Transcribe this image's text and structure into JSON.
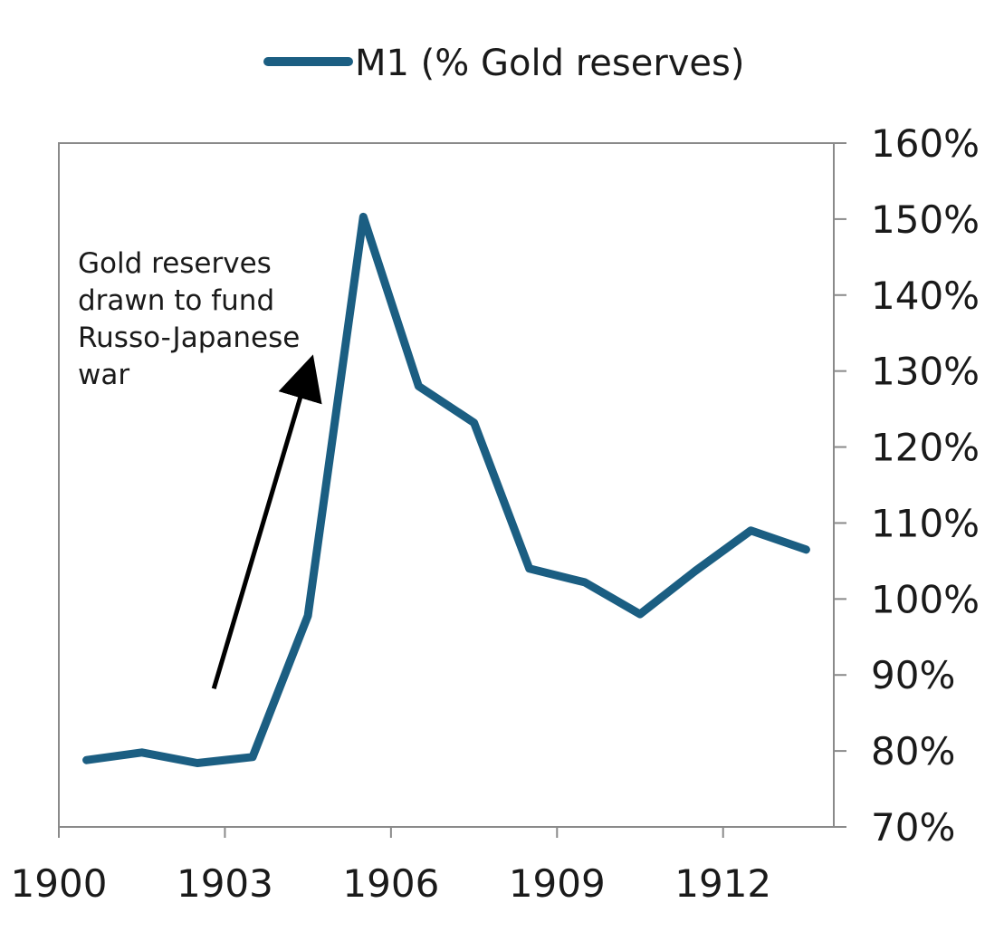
{
  "chart_data": {
    "type": "line",
    "title": "",
    "xlabel": "",
    "ylabel": "",
    "legend": {
      "position": "top-center",
      "entries": [
        "M1 (% Gold reserves)"
      ]
    },
    "x_ticks": [
      "1900",
      "1903",
      "1906",
      "1909",
      "1912"
    ],
    "y_ticks": [
      "70%",
      "80%",
      "90%",
      "100%",
      "110%",
      "120%",
      "130%",
      "140%",
      "150%",
      "160%"
    ],
    "xlim": [
      1900,
      1914
    ],
    "ylim": [
      70,
      160
    ],
    "y_axis_side": "right",
    "grid": false,
    "series": [
      {
        "name": "M1 (% Gold reserves)",
        "color": "#1b5e82",
        "x": [
          1900.5,
          1901.5,
          1902.5,
          1903.5,
          1904.5,
          1905.5,
          1906.5,
          1907.5,
          1908.5,
          1909.5,
          1910.5,
          1911.5,
          1912.5,
          1913.5
        ],
        "values": [
          78.8,
          79.8,
          78.4,
          79.2,
          97.8,
          150.3,
          128.0,
          123.2,
          104.0,
          102.2,
          98.0,
          103.7,
          109.0,
          106.5
        ]
      }
    ],
    "annotations": [
      {
        "lines": [
          "Gold reserves",
          "drawn to fund",
          "Russo-Japanese",
          "war"
        ],
        "arrow": {
          "x_from": 1902.8,
          "y_from": 88.2,
          "x_to": 1904.5,
          "y_to": 129.9
        },
        "arrow_color": "#000000"
      }
    ]
  }
}
